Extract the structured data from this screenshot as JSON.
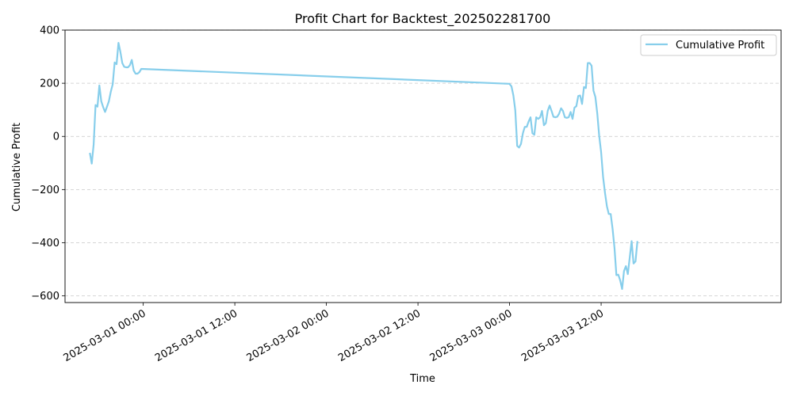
{
  "chart_data": {
    "type": "line",
    "title": "Profit Chart for Backtest_202502281700",
    "xlabel": "Time",
    "ylabel": "Cumulative Profit",
    "ylim": [
      -625,
      400
    ],
    "xlim": [
      "2025-02-28T13:45",
      "2025-03-04T11:35"
    ],
    "yticks": [
      -600,
      -400,
      -200,
      0,
      200,
      400
    ],
    "xticks": [
      "2025-03-01 00:00",
      "2025-03-01 12:00",
      "2025-03-02 00:00",
      "2025-03-02 12:00",
      "2025-03-03 00:00",
      "2025-03-03 12:00"
    ],
    "grid": "horizontal dashed",
    "legend_position": "top-right",
    "series": [
      {
        "name": "Cumulative Profit",
        "color": "#87ceeb",
        "points": [
          [
            "2025-02-28T17:00",
            -62
          ],
          [
            "2025-02-28T17:15",
            -102
          ],
          [
            "2025-02-28T17:30",
            -30
          ],
          [
            "2025-02-28T17:45",
            118
          ],
          [
            "2025-02-28T18:00",
            112
          ],
          [
            "2025-02-28T18:15",
            192
          ],
          [
            "2025-02-28T18:30",
            132
          ],
          [
            "2025-02-28T18:45",
            110
          ],
          [
            "2025-02-28T19:00",
            92
          ],
          [
            "2025-02-28T19:15",
            112
          ],
          [
            "2025-02-28T19:30",
            132
          ],
          [
            "2025-02-28T19:45",
            168
          ],
          [
            "2025-02-28T20:00",
            196
          ],
          [
            "2025-02-28T20:15",
            278
          ],
          [
            "2025-02-28T20:30",
            272
          ],
          [
            "2025-02-28T20:45",
            352
          ],
          [
            "2025-02-28T21:00",
            318
          ],
          [
            "2025-02-28T21:15",
            276
          ],
          [
            "2025-02-28T21:30",
            262
          ],
          [
            "2025-02-28T21:45",
            260
          ],
          [
            "2025-02-28T22:00",
            260
          ],
          [
            "2025-02-28T22:15",
            268
          ],
          [
            "2025-02-28T22:30",
            288
          ],
          [
            "2025-02-28T22:45",
            248
          ],
          [
            "2025-02-28T23:00",
            236
          ],
          [
            "2025-02-28T23:15",
            236
          ],
          [
            "2025-02-28T23:30",
            242
          ],
          [
            "2025-02-28T23:45",
            254
          ],
          [
            "2025-03-02T23:59",
            198
          ],
          [
            "2025-03-03T00:15",
            188
          ],
          [
            "2025-03-03T00:30",
            154
          ],
          [
            "2025-03-03T00:45",
            98
          ],
          [
            "2025-03-03T01:00",
            -36
          ],
          [
            "2025-03-03T01:15",
            -42
          ],
          [
            "2025-03-03T01:30",
            -28
          ],
          [
            "2025-03-03T01:45",
            12
          ],
          [
            "2025-03-03T02:00",
            36
          ],
          [
            "2025-03-03T02:15",
            36
          ],
          [
            "2025-03-03T02:30",
            56
          ],
          [
            "2025-03-03T02:45",
            72
          ],
          [
            "2025-03-03T03:00",
            12
          ],
          [
            "2025-03-03T03:15",
            6
          ],
          [
            "2025-03-03T03:30",
            72
          ],
          [
            "2025-03-03T03:45",
            66
          ],
          [
            "2025-03-03T04:00",
            72
          ],
          [
            "2025-03-03T04:15",
            96
          ],
          [
            "2025-03-03T04:30",
            42
          ],
          [
            "2025-03-03T04:45",
            50
          ],
          [
            "2025-03-03T05:00",
            96
          ],
          [
            "2025-03-03T05:15",
            116
          ],
          [
            "2025-03-03T05:30",
            96
          ],
          [
            "2025-03-03T05:45",
            74
          ],
          [
            "2025-03-03T06:00",
            72
          ],
          [
            "2025-03-03T06:15",
            74
          ],
          [
            "2025-03-03T06:30",
            86
          ],
          [
            "2025-03-03T06:45",
            106
          ],
          [
            "2025-03-03T07:00",
            96
          ],
          [
            "2025-03-03T07:15",
            72
          ],
          [
            "2025-03-03T07:30",
            70
          ],
          [
            "2025-03-03T07:45",
            72
          ],
          [
            "2025-03-03T08:00",
            92
          ],
          [
            "2025-03-03T08:15",
            66
          ],
          [
            "2025-03-03T08:30",
            108
          ],
          [
            "2025-03-03T08:45",
            114
          ],
          [
            "2025-03-03T09:00",
            152
          ],
          [
            "2025-03-03T09:15",
            154
          ],
          [
            "2025-03-03T09:30",
            122
          ],
          [
            "2025-03-03T09:45",
            186
          ],
          [
            "2025-03-03T10:00",
            182
          ],
          [
            "2025-03-03T10:15",
            276
          ],
          [
            "2025-03-03T10:30",
            276
          ],
          [
            "2025-03-03T10:45",
            266
          ],
          [
            "2025-03-03T11:00",
            172
          ],
          [
            "2025-03-03T11:15",
            148
          ],
          [
            "2025-03-03T11:30",
            86
          ],
          [
            "2025-03-03T11:45",
            2
          ],
          [
            "2025-03-03T12:00",
            -58
          ],
          [
            "2025-03-03T12:15",
            -152
          ],
          [
            "2025-03-03T12:30",
            -212
          ],
          [
            "2025-03-03T12:45",
            -262
          ],
          [
            "2025-03-03T13:00",
            -292
          ],
          [
            "2025-03-03T13:15",
            -292
          ],
          [
            "2025-03-03T13:30",
            -348
          ],
          [
            "2025-03-03T13:45",
            -420
          ],
          [
            "2025-03-03T14:00",
            -522
          ],
          [
            "2025-03-03T14:15",
            -520
          ],
          [
            "2025-03-03T14:30",
            -542
          ],
          [
            "2025-03-03T14:45",
            -574
          ],
          [
            "2025-03-03T15:00",
            -506
          ],
          [
            "2025-03-03T15:15",
            -488
          ],
          [
            "2025-03-03T15:30",
            -518
          ],
          [
            "2025-03-03T15:45",
            -456
          ],
          [
            "2025-03-03T16:00",
            -394
          ],
          [
            "2025-03-03T16:15",
            -478
          ],
          [
            "2025-03-03T16:30",
            -470
          ],
          [
            "2025-03-03T16:45",
            -394
          ]
        ]
      }
    ]
  }
}
